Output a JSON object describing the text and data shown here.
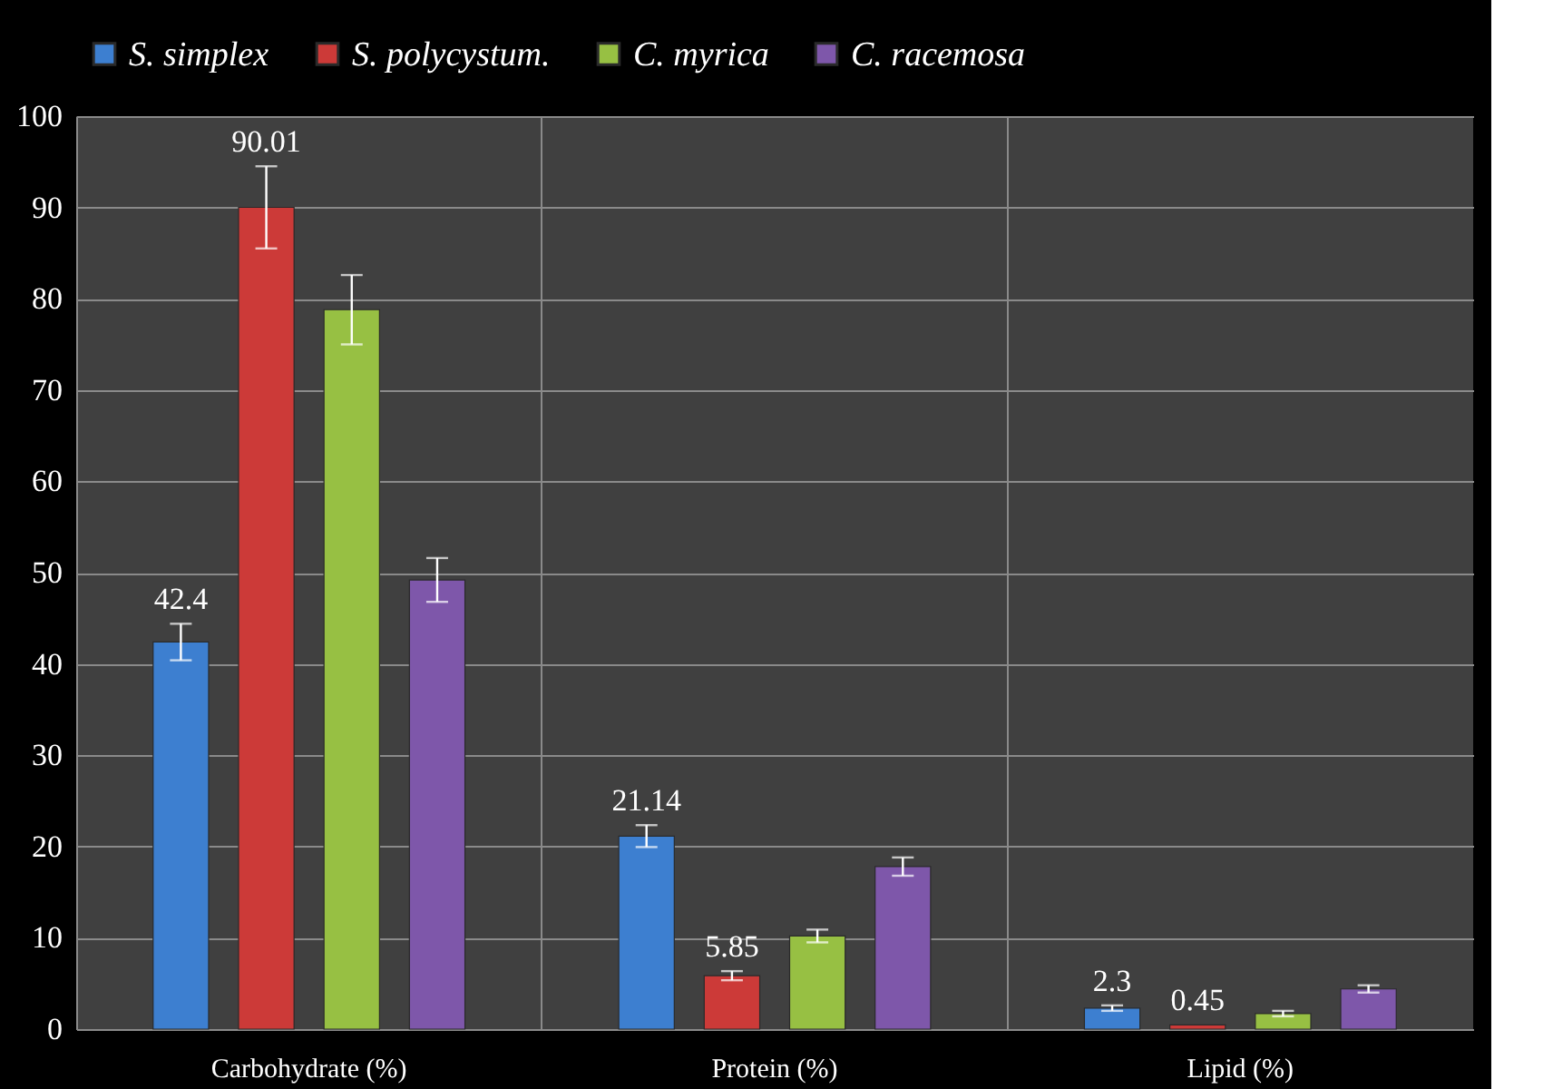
{
  "chart_data": {
    "type": "bar",
    "categories": [
      "Carbohydrate (%)",
      "Protein (%)",
      "Lipid (%)"
    ],
    "series": [
      {
        "name": "S. simplex",
        "color": "#3d7fd0",
        "values": [
          42.4,
          21.14,
          2.3
        ],
        "errors": [
          2.0,
          1.2,
          0.3
        ],
        "value_labels": [
          "42.4",
          "21.14",
          "2.3"
        ]
      },
      {
        "name": "S. polycystum.",
        "color": "#cc3a38",
        "values": [
          90.01,
          5.85,
          0.45
        ],
        "errors": [
          4.5,
          0.5,
          null
        ],
        "value_labels": [
          "90.01",
          "5.85",
          "0.45"
        ]
      },
      {
        "name": "C. myrica",
        "color": "#97c043",
        "values": [
          78.8,
          10.2,
          1.7
        ],
        "errors": [
          3.8,
          0.7,
          0.3
        ],
        "value_labels": [
          null,
          null,
          null
        ]
      },
      {
        "name": "C. racemosa",
        "color": "#7e57aa",
        "values": [
          49.2,
          17.8,
          4.4
        ],
        "errors": [
          2.4,
          1.0,
          0.4
        ],
        "value_labels": [
          null,
          null,
          null
        ]
      }
    ],
    "ylim": [
      0,
      100
    ],
    "yticks": [
      0,
      10,
      20,
      30,
      40,
      50,
      60,
      70,
      80,
      90,
      100
    ],
    "grid": true,
    "legend": "top"
  }
}
